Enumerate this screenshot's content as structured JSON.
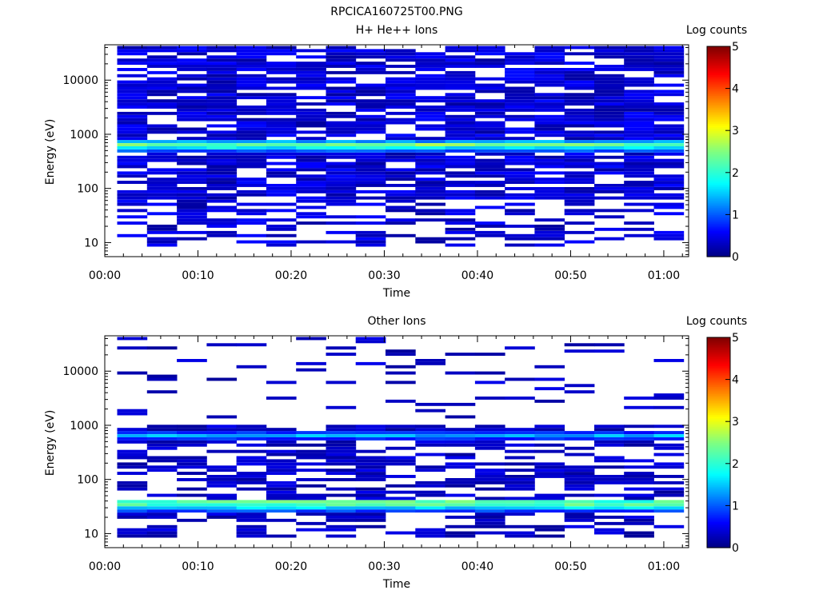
{
  "figure": {
    "title": "RPCICA160725T00.PNG"
  },
  "chart_data": [
    {
      "type": "heatmap",
      "title": "H+ He++ Ions",
      "xlabel": "Time",
      "ylabel": "Energy (eV)",
      "y_scale": "log",
      "xlim": [
        "00:00",
        "01:02:40"
      ],
      "ylim": [
        5.5,
        45000
      ],
      "x_ticks": [
        "00:00",
        "00:10",
        "00:20",
        "00:30",
        "00:40",
        "00:50",
        "01:00"
      ],
      "y_ticks": [
        "10",
        "100",
        "1000",
        "10000"
      ],
      "colorbar": {
        "label": "Log counts",
        "range": [
          0,
          5
        ],
        "ticks": [
          "0",
          "1",
          "2",
          "3",
          "4",
          "5"
        ],
        "colormap": "rainbow (dark blue to red)"
      },
      "grid": false,
      "time_bins": 19,
      "time_bin_width_minutes": 3.2,
      "time_start": "00:01:20",
      "dominant_bands": [
        {
          "energy_ev": 630,
          "log_counts": 2.4
        },
        {
          "energy_ev": 560,
          "log_counts": 1.7
        }
      ],
      "background_log_counts": 0.5,
      "highest_energy_ev": 40000,
      "lowest_energy_ev": 9
    },
    {
      "type": "heatmap",
      "title": "Other Ions",
      "xlabel": "Time",
      "ylabel": "Energy (eV)",
      "y_scale": "log",
      "xlim": [
        "00:00",
        "01:02:40"
      ],
      "ylim": [
        5.5,
        45000
      ],
      "x_ticks": [
        "00:00",
        "00:10",
        "00:20",
        "00:30",
        "00:40",
        "00:50",
        "01:00"
      ],
      "y_ticks": [
        "10",
        "100",
        "1000",
        "10000"
      ],
      "colorbar": {
        "label": "Log counts",
        "range": [
          0,
          5
        ],
        "ticks": [
          "0",
          "1",
          "2",
          "3",
          "4",
          "5"
        ],
        "colormap": "rainbow (dark blue to red)"
      },
      "grid": false,
      "time_bins": 19,
      "time_bin_width_minutes": 3.2,
      "time_start": "00:01:20",
      "dominant_bands": [
        {
          "energy_ev": 37,
          "log_counts": 2.2
        },
        {
          "energy_ev": 30,
          "log_counts": 1.6
        },
        {
          "energy_ev": 630,
          "log_counts": 1.4
        }
      ],
      "background_log_counts": 0.4,
      "highest_energy_ev": 40000,
      "lowest_energy_ev": 9
    }
  ]
}
